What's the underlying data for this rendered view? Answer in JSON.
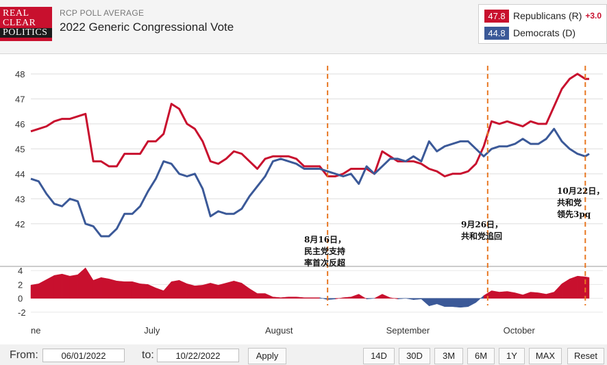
{
  "header": {
    "logo_lines": [
      "REAL",
      "CLEAR",
      "POLITICS"
    ],
    "subtitle": "RCP POLL AVERAGE",
    "title": "2022 Generic Congressional Vote"
  },
  "legend": {
    "republicans": {
      "value": "47.8",
      "label": "Republicans (R)",
      "spread": "+3.0",
      "color": "#c8102e"
    },
    "democrats": {
      "value": "44.8",
      "label": "Democrats (D)",
      "color": "#3b5998"
    }
  },
  "annotations": [
    {
      "lines": [
        "8月16日，",
        "民主党支持",
        "率首次反超"
      ]
    },
    {
      "lines": [
        "9月26日，",
        "共和党追回"
      ]
    },
    {
      "lines": [
        "10月22日，",
        "共和党",
        "领先3pq"
      ]
    }
  ],
  "controls": {
    "from_label": "From:",
    "from_value": "06/01/2022",
    "to_label": "to:",
    "to_value": "10/22/2022",
    "apply_label": "Apply",
    "ranges": [
      "14D",
      "30D",
      "3M",
      "6M",
      "1Y",
      "MAX"
    ],
    "reset_label": "Reset"
  },
  "chart_data": {
    "type": "line",
    "title": "2022 Generic Congressional Vote",
    "x_range": [
      0,
      143
    ],
    "ylim": [
      41.5,
      48.3
    ],
    "yticks": [
      42,
      43,
      44,
      45,
      46,
      47,
      48
    ],
    "spread_ylim": [
      -2.5,
      4.5
    ],
    "spread_ticks": [
      4,
      2,
      0,
      -2
    ],
    "month_labels": [
      {
        "label": "ne",
        "day": 0
      },
      {
        "label": "July",
        "day": 29
      },
      {
        "label": "August",
        "day": 60
      },
      {
        "label": "September",
        "day": 91
      },
      {
        "label": "October",
        "day": 121
      }
    ],
    "event_days": [
      76,
      117,
      142
    ],
    "series": [
      {
        "name": "Republicans (R)",
        "color": "#c8102e",
        "x": [
          0,
          2,
          4,
          6,
          8,
          10,
          12,
          14,
          16,
          18,
          20,
          22,
          24,
          26,
          28,
          30,
          32,
          34,
          36,
          38,
          40,
          42,
          44,
          46,
          48,
          50,
          52,
          54,
          56,
          58,
          60,
          62,
          64,
          66,
          68,
          70,
          72,
          74,
          76,
          78,
          80,
          82,
          84,
          86,
          88,
          90,
          92,
          94,
          96,
          98,
          100,
          102,
          104,
          106,
          108,
          110,
          112,
          114,
          116,
          118,
          120,
          122,
          124,
          126,
          128,
          130,
          132,
          134,
          136,
          138,
          140,
          142,
          143
        ],
        "values": [
          45.7,
          45.8,
          45.9,
          46.1,
          46.2,
          46.2,
          46.3,
          46.4,
          44.5,
          44.5,
          44.3,
          44.3,
          44.8,
          44.8,
          44.8,
          45.3,
          45.3,
          45.6,
          46.8,
          46.6,
          46.0,
          45.8,
          45.3,
          44.5,
          44.4,
          44.6,
          44.9,
          44.8,
          44.5,
          44.2,
          44.6,
          44.7,
          44.7,
          44.7,
          44.6,
          44.3,
          44.3,
          44.3,
          43.9,
          43.9,
          44.0,
          44.2,
          44.2,
          44.2,
          44.0,
          44.9,
          44.7,
          44.5,
          44.5,
          44.5,
          44.4,
          44.2,
          44.1,
          43.9,
          44.0,
          44.0,
          44.1,
          44.4,
          45.1,
          46.1,
          46.0,
          46.1,
          46.0,
          45.9,
          46.1,
          46.0,
          46.0,
          46.7,
          47.4,
          47.8,
          48.0,
          47.8,
          47.8
        ]
      },
      {
        "name": "Democrats (D)",
        "color": "#3b5998",
        "x": [
          0,
          2,
          4,
          6,
          8,
          10,
          12,
          14,
          16,
          18,
          20,
          22,
          24,
          26,
          28,
          30,
          32,
          34,
          36,
          38,
          40,
          42,
          44,
          46,
          48,
          50,
          52,
          54,
          56,
          58,
          60,
          62,
          64,
          66,
          68,
          70,
          72,
          74,
          76,
          78,
          80,
          82,
          84,
          86,
          88,
          90,
          92,
          94,
          96,
          98,
          100,
          102,
          104,
          106,
          108,
          110,
          112,
          114,
          116,
          118,
          120,
          122,
          124,
          126,
          128,
          130,
          132,
          134,
          136,
          138,
          140,
          142,
          143
        ],
        "values": [
          43.8,
          43.7,
          43.2,
          42.8,
          42.7,
          43.0,
          42.9,
          42.0,
          41.9,
          41.5,
          41.5,
          41.8,
          42.4,
          42.4,
          42.7,
          43.3,
          43.8,
          44.5,
          44.4,
          44.0,
          43.9,
          44.0,
          43.4,
          42.3,
          42.5,
          42.4,
          42.4,
          42.6,
          43.1,
          43.5,
          43.9,
          44.5,
          44.6,
          44.5,
          44.4,
          44.2,
          44.2,
          44.2,
          44.1,
          44.0,
          43.9,
          44.0,
          43.6,
          44.3,
          44.0,
          44.3,
          44.6,
          44.6,
          44.5,
          44.7,
          44.5,
          45.3,
          44.9,
          45.1,
          45.2,
          45.3,
          45.3,
          45.0,
          44.7,
          45.0,
          45.1,
          45.1,
          45.2,
          45.4,
          45.2,
          45.2,
          45.4,
          45.8,
          45.3,
          45.0,
          44.8,
          44.7,
          44.8
        ]
      }
    ]
  }
}
